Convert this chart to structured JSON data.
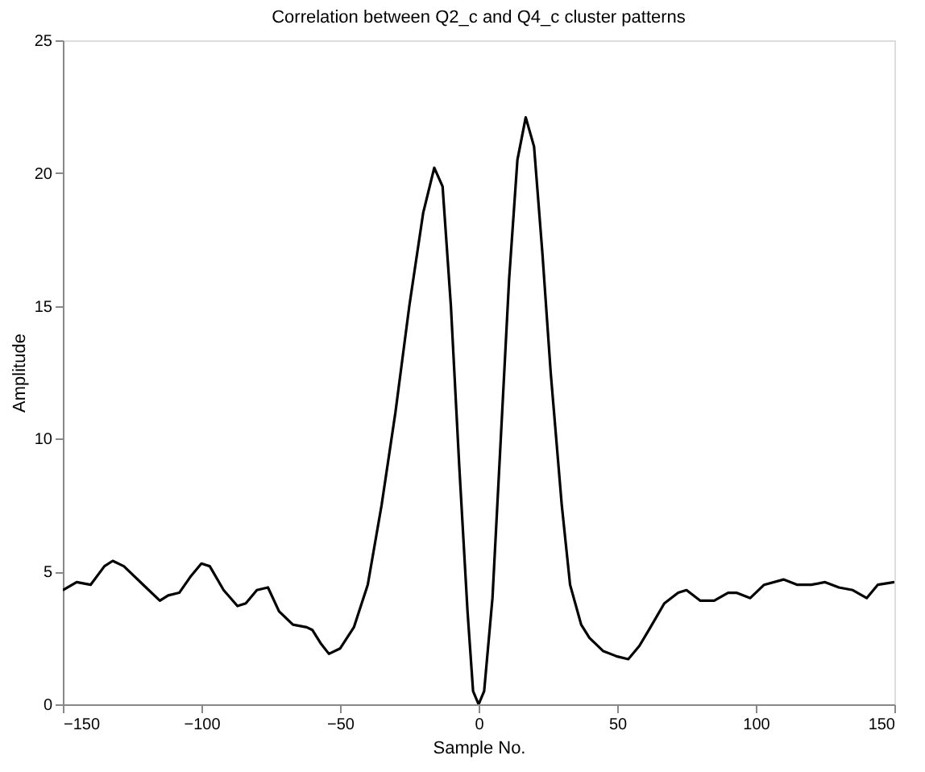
{
  "chart_data": {
    "type": "line",
    "title": "Correlation between Q2_c and Q4_c cluster patterns",
    "xlabel": "Sample No.",
    "ylabel": "Amplitude",
    "x": [
      -150,
      -145,
      -140,
      -135,
      -132,
      -128,
      -120,
      -115,
      -112,
      -108,
      -104,
      -100,
      -97,
      -92,
      -87,
      -84,
      -80,
      -76,
      -72,
      -67,
      -62,
      -60,
      -57,
      -54,
      -50,
      -45,
      -40,
      -35,
      -30,
      -25,
      -20,
      -16,
      -13,
      -10,
      -7,
      -4,
      -2,
      0,
      2,
      5,
      8,
      11,
      14,
      17,
      20,
      23,
      26,
      30,
      33,
      37,
      40,
      45,
      50,
      54,
      58,
      62,
      67,
      72,
      75,
      80,
      85,
      90,
      93,
      98,
      103,
      110,
      115,
      120,
      125,
      130,
      135,
      140,
      144,
      150
    ],
    "series": [
      {
        "color": "#000000",
        "values": [
          4.3,
          4.6,
          4.5,
          5.2,
          5.4,
          5.2,
          4.4,
          3.9,
          4.1,
          4.2,
          4.8,
          5.3,
          5.2,
          4.3,
          3.7,
          3.8,
          4.3,
          4.4,
          3.5,
          3.0,
          2.9,
          2.8,
          2.3,
          1.9,
          2.1,
          2.9,
          4.5,
          7.5,
          11,
          15,
          18.5,
          20.2,
          19.5,
          15,
          9,
          3.5,
          0.5,
          0,
          0.5,
          4,
          10,
          16,
          20.5,
          22.1,
          21,
          17,
          12.5,
          7.5,
          4.5,
          3,
          2.5,
          2.0,
          1.8,
          1.7,
          2.2,
          2.9,
          3.8,
          4.2,
          4.3,
          3.9,
          3.9,
          4.2,
          4.2,
          4.0,
          4.5,
          4.7,
          4.5,
          4.5,
          4.6,
          4.4,
          4.3,
          4.0,
          4.5,
          4.6
        ]
      }
    ],
    "xlim": [
      -150,
      150
    ],
    "xticks": [
      -150,
      -100,
      -50,
      0,
      50,
      100,
      150
    ],
    "ylim": [
      0,
      25
    ],
    "yticks": [
      0,
      5,
      10,
      15,
      20,
      25
    ],
    "grid": false,
    "line_style": "solid"
  }
}
